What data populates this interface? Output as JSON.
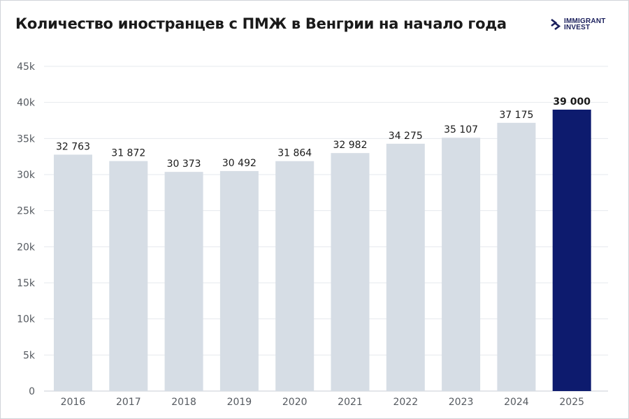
{
  "title": "Количество иностранцев с ПМЖ в Венгрии на начало года",
  "logo": {
    "line1": "IMMIGRANT",
    "line2": "INVEST",
    "icon": "immigrant-invest-chevrons"
  },
  "colors": {
    "bar": "#d6dde5",
    "highlight": "#0d1b6e",
    "grid": "#e6e9ed",
    "axis_text": "#555a60",
    "label_text": "#1a1a1a"
  },
  "chart_data": {
    "type": "bar",
    "categories": [
      "2016",
      "2017",
      "2018",
      "2019",
      "2020",
      "2021",
      "2022",
      "2023",
      "2024",
      "2025"
    ],
    "values": [
      32763,
      31872,
      30373,
      30492,
      31864,
      32982,
      34275,
      35107,
      37175,
      39000
    ],
    "value_labels": [
      "32 763",
      "31 872",
      "30 373",
      "30 492",
      "31 864",
      "32 982",
      "34 275",
      "35 107",
      "37 175",
      "39 000"
    ],
    "highlight_index": 9,
    "ylim": [
      0,
      45000
    ],
    "yticks": [
      0,
      5000,
      10000,
      15000,
      20000,
      25000,
      30000,
      35000,
      40000,
      45000
    ],
    "ytick_labels": [
      "0",
      "5k",
      "10k",
      "15k",
      "20k",
      "25k",
      "30k",
      "35k",
      "40k",
      "45k"
    ],
    "grid": true,
    "legend": "none",
    "xlabel": "",
    "ylabel": ""
  }
}
